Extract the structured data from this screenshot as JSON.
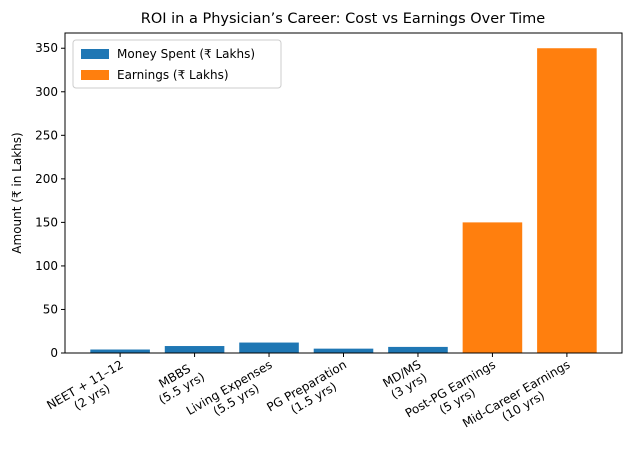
{
  "chart_data": {
    "type": "bar",
    "title": "ROI in a Physician’s Career: Cost vs Earnings Over Time",
    "y_label": "Amount (₹ in Lakhs)",
    "categories": [
      "NEET + 11–12\n(2 yrs)",
      "MBBS\n(5.5 yrs)",
      "Living Expenses\n(5.5 yrs)",
      "PG Preparation\n(1.5 yrs)",
      "MD/MS\n(3 yrs)",
      "Post-PG Earnings\n(5 yrs)",
      "Mid-Career Earnings\n(10 yrs)"
    ],
    "series": [
      {
        "name": "Money Spent (₹ Lakhs)",
        "color": "#1f77b4",
        "values": [
          4,
          8,
          12,
          5,
          7,
          null,
          null
        ]
      },
      {
        "name": "Earnings (₹ Lakhs)",
        "color": "#ff7f0e",
        "values": [
          null,
          null,
          null,
          null,
          null,
          150,
          350
        ]
      }
    ],
    "ylim": [
      0,
      367.5
    ],
    "yticks": [
      0,
      50,
      100,
      150,
      200,
      250,
      300,
      350
    ],
    "grid": false,
    "legend": "upper-left"
  }
}
